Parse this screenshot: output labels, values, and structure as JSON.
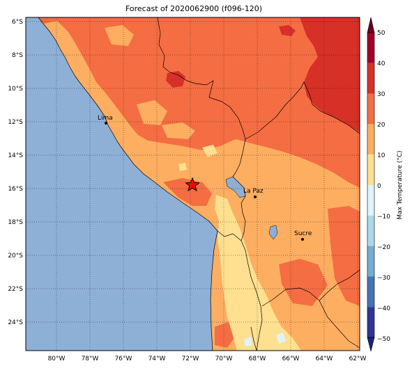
{
  "title": "Forecast of 2020062900 (f096-120)",
  "map": {
    "lat_ticks": [
      "6°S",
      "8°S",
      "10°S",
      "12°S",
      "14°S",
      "16°S",
      "18°S",
      "20°S",
      "22°S",
      "24°S"
    ],
    "lon_ticks": [
      "80°W",
      "78°W",
      "76°W",
      "74°W",
      "72°W",
      "70°W",
      "68°W",
      "66°W",
      "64°W",
      "62°W"
    ],
    "cities": [
      {
        "name": "Lima"
      },
      {
        "name": "La Paz"
      },
      {
        "name": "Sucre"
      }
    ],
    "marker": "star-marker"
  },
  "colorbar": {
    "label": "Max Temperature (°C)",
    "ticks": [
      "50",
      "40",
      "30",
      "20",
      "10",
      "0",
      "−10",
      "−20",
      "−30",
      "−40",
      "−50"
    ],
    "colors": [
      "#a50026",
      "#d73027",
      "#f46d43",
      "#fdae61",
      "#fee090",
      "#e0f3f8",
      "#abd9e9",
      "#74add1",
      "#4575b4",
      "#313695"
    ]
  },
  "colors": {
    "ocean": "#8fb0d6",
    "land_hot": "#f46d43",
    "land_warm": "#fdae61",
    "land_mild": "#fee090",
    "land_veryhot": "#d73027"
  }
}
